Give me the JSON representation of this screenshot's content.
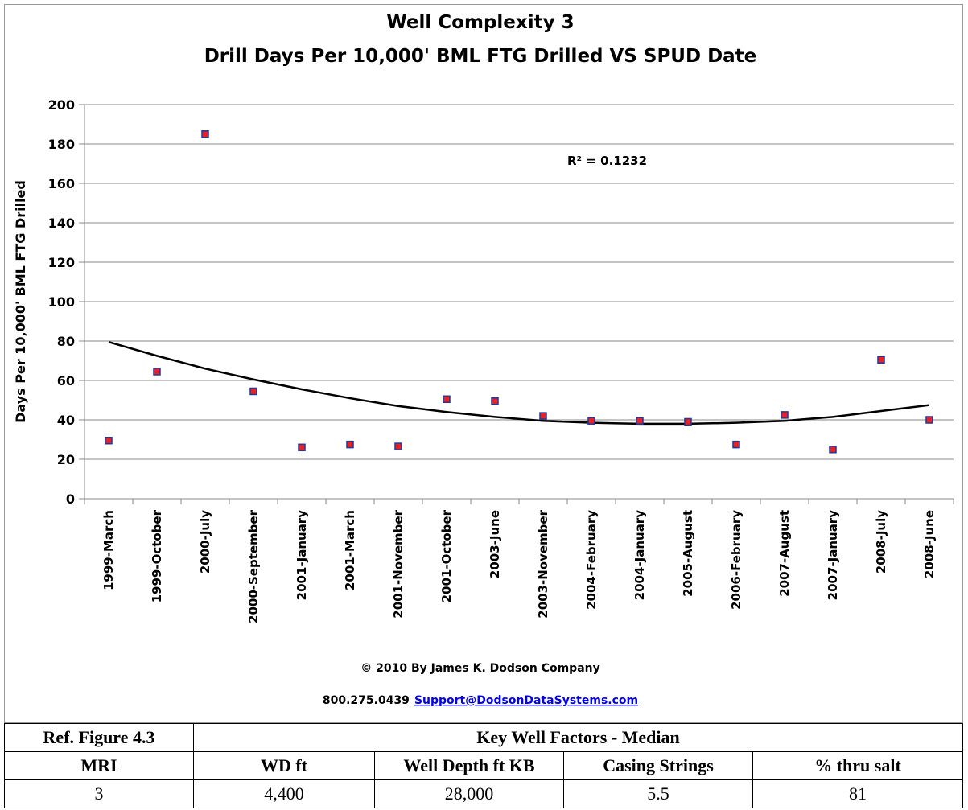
{
  "chart_data": {
    "type": "scatter",
    "title": "Well Complexity 3",
    "subtitle": "Drill Days Per 10,000' BML FTG Drilled VS SPUD Date",
    "y_label": "Days Per 10,000' BML FTG Drilled",
    "annotation": "R² = 0.1232",
    "categories": [
      "1999-March",
      "1999-October",
      "2000-July",
      "2000-September",
      "2001-January",
      "2001-March",
      "2001-November",
      "2001-October",
      "2003-June",
      "2003-November",
      "2004-February",
      "2004-January",
      "2005-August",
      "2006-February",
      "2007-August",
      "2007-January",
      "2008-July",
      "2008-June"
    ],
    "values": [
      29.5,
      64.5,
      185,
      54.5,
      26,
      27.5,
      26.5,
      50.5,
      49.5,
      42,
      39.5,
      39.5,
      39,
      27.5,
      42.5,
      25,
      70.5,
      40
    ],
    "color": "#e8202a",
    "trendline": {
      "values": [
        79.5,
        72.5,
        66,
        60.5,
        55.5,
        51,
        47,
        44,
        41.5,
        39.5,
        38.5,
        38,
        38,
        38.5,
        39.5,
        41.5,
        44.5,
        47.5
      ],
      "color": "#000000"
    },
    "ylim": [
      0,
      200
    ],
    "yticks": [
      0,
      20,
      40,
      60,
      80,
      100,
      120,
      140,
      160,
      180,
      200
    ],
    "grid": true,
    "footer": [
      "© 2010 By James K. Dodson Company",
      "800.275.0439",
      "Support@DodsonDataSystems.com"
    ]
  },
  "table": {
    "ref": "Ref. Figure 4.3",
    "title": "Key Well Factors - Median",
    "headers": [
      "MRI",
      "WD  ft",
      "Well Depth ft KB",
      "Casing Strings",
      "% thru salt"
    ],
    "rows": [
      [
        "3",
        "4,400",
        "28,000",
        "5.5",
        "81"
      ]
    ]
  }
}
